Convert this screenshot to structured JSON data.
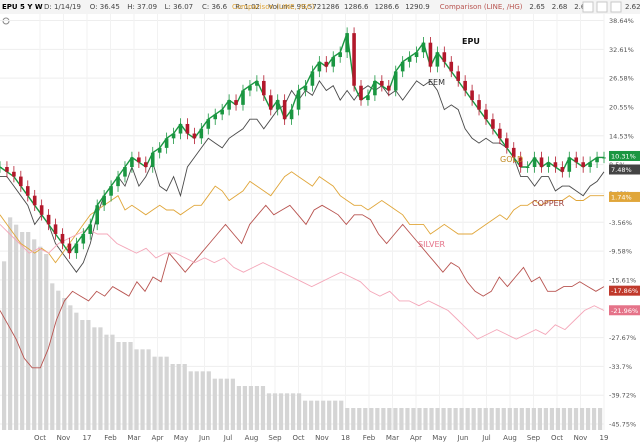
{
  "header": {
    "symbol_text": "EPU 5 Y W",
    "icon": "gear-icon",
    "fields": [
      {
        "label": "D:",
        "value": "1/14/19"
      },
      {
        "label": "O:",
        "value": "36.45"
      },
      {
        "label": "H:",
        "value": "37.09"
      },
      {
        "label": "L:",
        "value": "36.07"
      },
      {
        "label": "C:",
        "value": "36.6"
      },
      {
        "label": "R:",
        "value": "1.02"
      },
      {
        "label": "Volume",
        "value": "99,572"
      }
    ],
    "comparisons": [
      {
        "label": "Comparison (LINE, /GC)",
        "values": [
          "1286",
          "1286.6",
          "1286.6",
          "1290.9"
        ],
        "color": "#e0a63a"
      },
      {
        "label": "Comparison (LINE, /HG)",
        "values": [
          "2.65",
          "2.68",
          "2.62"
        ],
        "color": "#b85450"
      }
    ],
    "right_buttons": [
      "close-icon",
      "zoom-icon",
      "close-icon",
      "settings-icon"
    ],
    "right_text": "2.62"
  },
  "chart_data": {
    "type": "line",
    "title": "EPU 5 Y W",
    "x_ticks": [
      "Oct",
      "Nov",
      "17",
      "Feb",
      "Mar",
      "Apr",
      "May",
      "Jun",
      "Jul",
      "Aug",
      "Sep",
      "Oct",
      "Nov",
      "18",
      "Feb",
      "Mar",
      "Apr",
      "May",
      "Jun",
      "Jul",
      "Aug",
      "Sep",
      "Oct",
      "Nov",
      "19"
    ],
    "y_ticks": [
      "38.64%",
      "32.61%",
      "26.58%",
      "20.55%",
      "14.53%",
      "8.5%",
      "2.48%",
      "-3.56%",
      "-9.58%",
      "-15.61%",
      "-21.63%",
      "-27.67%",
      "-33.7%",
      "-39.72%",
      "-45.75%"
    ],
    "ylim": [
      -47,
      40
    ],
    "grid": true,
    "annotations": [
      "EPU",
      "EEM",
      "GOLD",
      "COPPER",
      "SILVER"
    ],
    "last_value_badges": [
      {
        "text": "10.31%",
        "color": "#1a9641"
      },
      {
        "text": "7.48%",
        "color": "#444444"
      },
      {
        "text": "1.74%",
        "color": "#e0a63a"
      },
      {
        "text": "-17.86%",
        "color": "#c0392b"
      },
      {
        "text": "-21.96%",
        "color": "#e57389"
      }
    ],
    "series": [
      {
        "name": "EEM",
        "color": "#4a4a4a",
        "values": [
          6,
          6,
          4,
          2,
          0,
          -4,
          -2,
          -4,
          -8,
          -10,
          -12,
          -14,
          -12,
          -8,
          -2,
          2,
          4,
          6,
          4,
          8,
          4,
          6,
          9,
          4,
          3,
          6,
          2,
          8,
          10,
          12,
          14,
          13,
          12,
          14,
          15,
          16,
          18,
          18,
          16,
          18,
          20,
          21,
          24,
          22,
          24,
          23,
          26,
          24,
          25,
          22,
          24,
          22,
          24,
          25,
          24,
          25,
          23,
          24,
          22,
          24,
          26,
          25,
          26,
          24,
          20,
          21,
          20,
          16,
          14,
          13,
          14,
          13,
          13,
          12,
          10,
          6,
          6,
          4,
          6,
          6,
          3,
          4,
          4,
          3,
          2,
          4,
          5,
          7
        ]
      },
      {
        "name": "GOLD",
        "color": "#e0a63a",
        "values": [
          -2,
          -4,
          -6,
          -8,
          -9,
          -10,
          -9,
          -10,
          -12,
          -10,
          -8,
          -6,
          -4,
          -2,
          -1,
          0,
          1,
          2,
          -1,
          0,
          -1,
          -2,
          -1,
          0,
          -1,
          -1,
          -2,
          -1,
          0,
          0,
          2,
          4,
          3,
          1,
          2,
          3,
          5,
          4,
          3,
          2,
          4,
          6,
          7,
          6,
          5,
          4,
          6,
          5,
          4,
          2,
          1,
          0,
          0,
          -1,
          0,
          1,
          0,
          -1,
          -2,
          -4,
          -4,
          -4,
          -6,
          -5,
          -4,
          -5,
          -6,
          -6,
          -6,
          -5,
          -4,
          -3,
          -2,
          -3,
          -1,
          0,
          0,
          1,
          0,
          1,
          1,
          1,
          2,
          1,
          1,
          2,
          2,
          2
        ]
      },
      {
        "name": "COPPER",
        "color": "#b85450",
        "values": [
          -22,
          -25,
          -28,
          -32,
          -34,
          -34,
          -30,
          -24,
          -20,
          -18,
          -19,
          -20,
          -18,
          -19,
          -17,
          -18,
          -19,
          -16,
          -18,
          -15,
          -16,
          -10,
          -12,
          -14,
          -12,
          -10,
          -8,
          -6,
          -4,
          -6,
          -8,
          -4,
          -2,
          0,
          -2,
          -1,
          0,
          -2,
          -4,
          -1,
          0,
          -1,
          -2,
          -4,
          -2,
          -2,
          -3,
          -6,
          -8,
          -6,
          -4,
          -6,
          -8,
          -10,
          -12,
          -14,
          -12,
          -13,
          -16,
          -18,
          -19,
          -18,
          -15,
          -17,
          -15,
          -13,
          -16,
          -15,
          -18,
          -18,
          -17,
          -17,
          -16,
          -17,
          -18,
          -17
        ]
      },
      {
        "name": "SILVER",
        "color": "#f4a7b9",
        "values": [
          -4,
          -6,
          -8,
          -10,
          -9,
          -10,
          -8,
          -7,
          -6,
          -5,
          -6,
          -6,
          -8,
          -9,
          -10,
          -9,
          -11,
          -10,
          -10,
          -11,
          -12,
          -11,
          -12,
          -11,
          -13,
          -14,
          -13,
          -12,
          -13,
          -14,
          -15,
          -16,
          -17,
          -16,
          -15,
          -14,
          -15,
          -16,
          -18,
          -19,
          -18,
          -20,
          -20,
          -21,
          -20,
          -21,
          -22,
          -24,
          -26,
          -28,
          -27,
          -26,
          -27,
          -28,
          -27,
          -26,
          -27,
          -25,
          -26,
          -24,
          -22,
          -21,
          -22
        ]
      },
      {
        "name": "EPU",
        "color": "#1a9641",
        "values": [
          8,
          7,
          6,
          4,
          2,
          0,
          -2,
          -4,
          -6,
          -8,
          -10,
          -8,
          -6,
          -4,
          0,
          2,
          4,
          6,
          8,
          10,
          9,
          8,
          11,
          12,
          14,
          15,
          17,
          15,
          14,
          16,
          18,
          19,
          20,
          22,
          21,
          24,
          25,
          26,
          23,
          20,
          22,
          18,
          20,
          24,
          25,
          28,
          30,
          29,
          31,
          32,
          36,
          25,
          22,
          23,
          26,
          25,
          24,
          28,
          30,
          31,
          32,
          34,
          29,
          32,
          30,
          28,
          26,
          24,
          22,
          20,
          18,
          16,
          14,
          12,
          10,
          8,
          8,
          10,
          8,
          9,
          8,
          7,
          10,
          9,
          8,
          9,
          10,
          10
        ]
      }
    ],
    "volume": [
      23,
      29,
      28,
      27,
      27,
      26,
      25,
      24,
      20,
      19,
      18,
      17,
      16,
      15,
      15,
      14,
      14,
      13,
      13,
      12,
      12,
      12,
      11,
      11,
      11,
      10,
      10,
      10,
      9,
      9,
      9,
      8,
      8,
      8,
      8,
      7,
      7,
      7,
      7,
      6,
      6,
      6,
      6,
      6,
      5,
      5,
      5,
      5,
      5,
      5,
      4,
      4,
      4,
      4,
      4,
      4,
      4,
      3,
      3,
      3,
      3,
      3,
      3,
      3,
      3,
      3,
      3,
      3,
      3,
      3,
      3,
      3,
      3,
      3,
      3,
      3,
      3,
      3,
      3,
      3,
      3,
      3,
      3,
      3,
      3,
      3,
      3,
      3,
      3,
      3,
      3,
      3,
      3,
      3,
      3,
      3,
      3,
      3,
      3,
      3
    ]
  }
}
